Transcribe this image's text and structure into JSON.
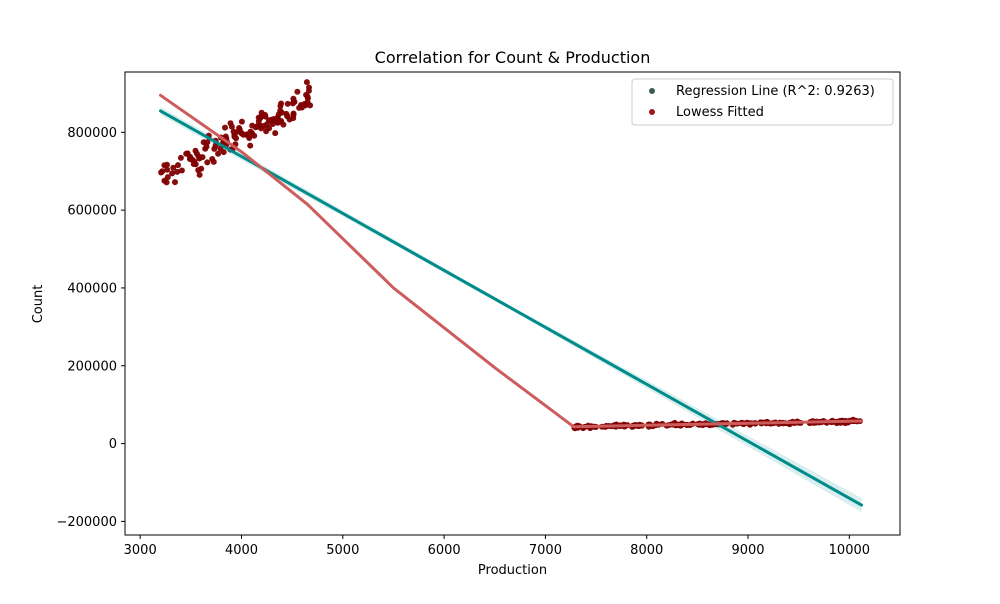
{
  "chart_data": {
    "type": "scatter",
    "title": "Correlation for Count & Production",
    "xlabel": "Production",
    "ylabel": "Count",
    "xlim": [
      2850,
      10500
    ],
    "ylim": [
      -235000,
      955000
    ],
    "xticks": [
      3000,
      4000,
      5000,
      6000,
      7000,
      8000,
      9000,
      10000
    ],
    "yticks": [
      -200000,
      0,
      200000,
      400000,
      600000,
      800000
    ],
    "ytick_labels": [
      "−200000",
      "0",
      "200000",
      "400000",
      "600000",
      "800000"
    ],
    "grid": false,
    "legend_position": "top-right",
    "legend": [
      {
        "label": "Regression Line (R^2: 0.9263)",
        "color": "#3d5a55"
      },
      {
        "label": "Lowess Fitted",
        "color": "#a01818"
      }
    ],
    "regression_line": {
      "color": "#008b8b",
      "x": [
        3200,
        10120
      ],
      "y": [
        855000,
        -158000
      ]
    },
    "lowess_line": {
      "color": "#cd5c5c",
      "x": [
        3200,
        4000,
        4650,
        5500,
        6500,
        7280,
        8000,
        9000,
        10120
      ],
      "y": [
        895000,
        750000,
        615000,
        400000,
        195000,
        43000,
        47000,
        52000,
        58000
      ]
    },
    "points_color": "#800000",
    "clusters": [
      {
        "x_start": 3200,
        "x_end": 4680,
        "y_start": 680000,
        "y_end": 890000,
        "spread": 32000,
        "count": 140
      },
      {
        "x_start": 7280,
        "x_end": 10120,
        "y_start": 43000,
        "y_end": 58000,
        "spread": 3000,
        "count": 200
      }
    ]
  }
}
